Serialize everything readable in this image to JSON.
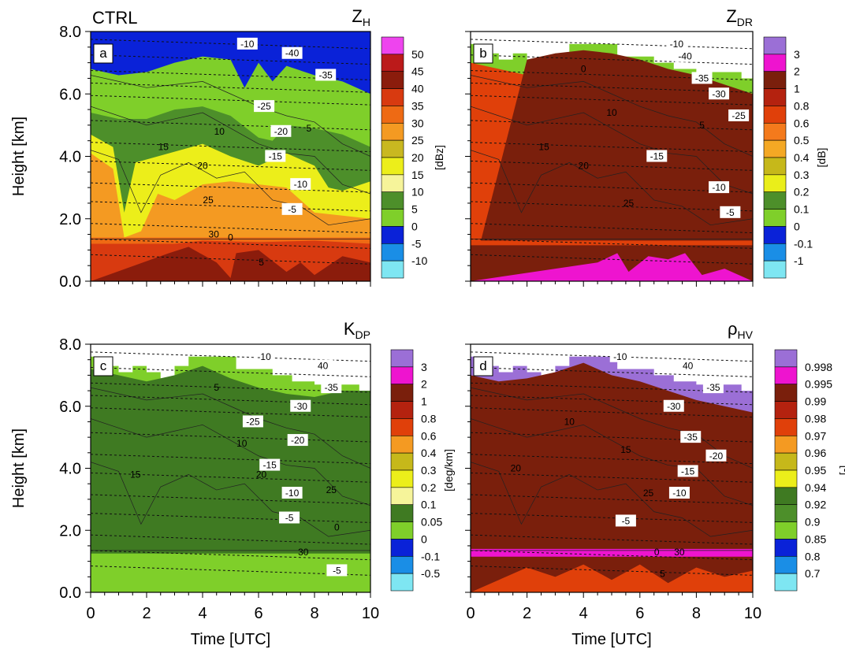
{
  "figure": {
    "experiment_label": "CTRL"
  },
  "chart_data": [
    {
      "type": "heatmap",
      "panel_letter": "a",
      "variable": "Z",
      "variable_sub": "H",
      "ylabel": "Height [km]",
      "xlabel": "",
      "xlim": [
        0,
        10
      ],
      "ylim": [
        0,
        8
      ],
      "yticks": [
        "0.0",
        "2.0",
        "4.0",
        "6.0",
        "8.0"
      ],
      "xticks": [],
      "colorbar": {
        "unit": "[dBz]",
        "labels": [
          "50",
          "45",
          "40",
          "35",
          "30",
          "25",
          "20",
          "15",
          "10",
          "5",
          "0",
          "-5",
          "-10"
        ],
        "colors": [
          "#ee44ee",
          "#bb1a1a",
          "#8b1c0c",
          "#d83a10",
          "#ee6a14",
          "#f49a22",
          "#c9b820",
          "#ecee1a",
          "#f6f49a",
          "#4d8f2a",
          "#7fcf2a",
          "#0a22d8",
          "#1a8ee6",
          "#7ee6f2"
        ]
      },
      "contour_labels": [
        "-10",
        "-40",
        "-35",
        "-25",
        "-20",
        "-15",
        "-10",
        "-5",
        "0",
        "5",
        "10",
        "15",
        "20",
        "25",
        "30",
        "5"
      ]
    },
    {
      "type": "heatmap",
      "panel_letter": "b",
      "variable": "Z",
      "variable_sub": "DR",
      "ylabel": "",
      "xlabel": "",
      "xlim": [
        0,
        10
      ],
      "ylim": [
        0,
        8
      ],
      "yticks": [],
      "xticks": [],
      "colorbar": {
        "unit": "[dB]",
        "labels": [
          "3",
          "2",
          "1",
          "0.8",
          "0.6",
          "0.5",
          "0.4",
          "0.3",
          "0.2",
          "0.1",
          "0",
          "-0.1",
          "-1"
        ],
        "colors": [
          "#9b6fd6",
          "#ee14cf",
          "#7a1f0c",
          "#b4220f",
          "#e0400a",
          "#f47a1c",
          "#f4a824",
          "#c6b81a",
          "#eaee1a",
          "#4d8f2a",
          "#7fcf2a",
          "#0a22d8",
          "#1a8ee6",
          "#7ee6f2"
        ]
      },
      "contour_labels": [
        "-10",
        "-40",
        "-35",
        "-30",
        "-25",
        "-15",
        "-10",
        "-5",
        "0",
        "5",
        "10",
        "15",
        "20",
        "25"
      ]
    },
    {
      "type": "heatmap",
      "panel_letter": "c",
      "variable": "K",
      "variable_sub": "DP",
      "ylabel": "Height [km]",
      "xlabel": "Time [UTC]",
      "xlim": [
        0,
        10
      ],
      "ylim": [
        0,
        8
      ],
      "yticks": [
        "0.0",
        "2.0",
        "4.0",
        "6.0",
        "8.0"
      ],
      "xticks": [
        "0",
        "2",
        "4",
        "6",
        "8",
        "10"
      ],
      "colorbar": {
        "unit": "[deg/km]",
        "labels": [
          "3",
          "2",
          "1",
          "0.8",
          "0.6",
          "0.4",
          "0.3",
          "0.2",
          "0.1",
          "0.05",
          "0",
          "-0.1",
          "-0.5"
        ],
        "colors": [
          "#9b6fd6",
          "#ee14cf",
          "#7a1f0c",
          "#b4220f",
          "#e0400a",
          "#f49a22",
          "#c6b81a",
          "#ecee1a",
          "#f6f49a",
          "#3f7a22",
          "#7fcf2a",
          "#0a22d8",
          "#1a8ee6",
          "#7ee6f2"
        ]
      },
      "contour_labels": [
        "-10",
        "40",
        "-35",
        "-30",
        "-25",
        "-20",
        "-15",
        "-10",
        "-5",
        "0",
        "5",
        "10",
        "15",
        "20",
        "25",
        "30",
        "-5"
      ]
    },
    {
      "type": "heatmap",
      "panel_letter": "d",
      "variable": "ρ",
      "variable_sub": "HV",
      "ylabel": "",
      "xlabel": "Time [UTC]",
      "xlim": [
        0,
        10
      ],
      "ylim": [
        0,
        8
      ],
      "yticks": [],
      "xticks": [
        "0",
        "2",
        "4",
        "6",
        "8",
        "10"
      ],
      "colorbar": {
        "unit": "[-]",
        "labels": [
          "0.998",
          "0.995",
          "0.99",
          "0.98",
          "0.97",
          "0.96",
          "0.95",
          "0.94",
          "0.92",
          "0.9",
          "0.85",
          "0.8",
          "0.7"
        ],
        "colors": [
          "#9b6fd6",
          "#ee14cf",
          "#7a1f0c",
          "#b4220f",
          "#e0400a",
          "#f49a22",
          "#c6b81a",
          "#ecee1a",
          "#3f7a22",
          "#4d8f2a",
          "#7fcf2a",
          "#0a22d8",
          "#1a8ee6",
          "#7ee6f2"
        ]
      },
      "contour_labels": [
        "-10",
        "40",
        "-35",
        "-30",
        "-35",
        "-20",
        "-15",
        "-10",
        "-5",
        "0",
        "30",
        "5",
        "10",
        "15",
        "20",
        "25"
      ]
    }
  ]
}
